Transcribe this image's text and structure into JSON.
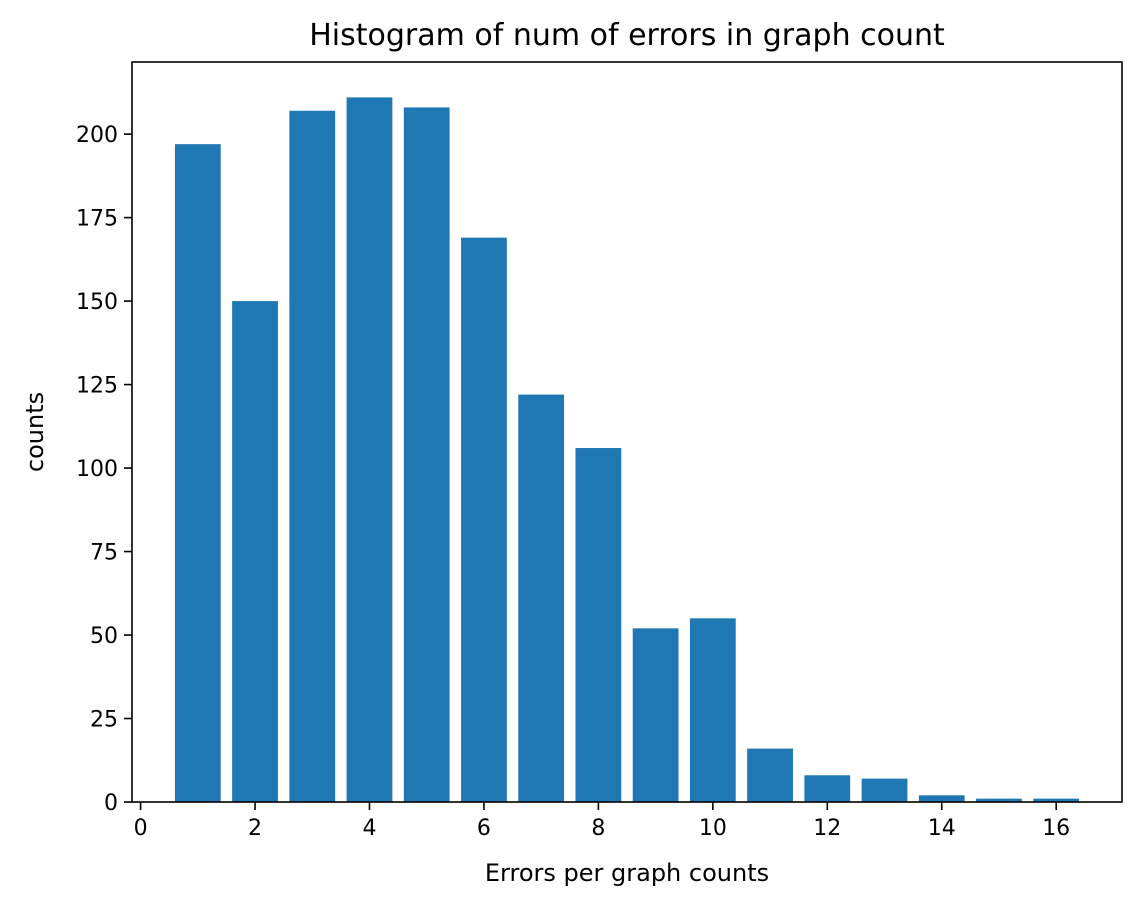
{
  "chart_data": {
    "type": "bar",
    "title": "Histogram of num of errors in graph count",
    "xlabel": "Errors per graph counts",
    "ylabel": "counts",
    "x": [
      1,
      2,
      3,
      4,
      5,
      6,
      7,
      8,
      9,
      10,
      11,
      12,
      13,
      14,
      15,
      16
    ],
    "values": [
      197,
      150,
      207,
      211,
      208,
      169,
      122,
      106,
      52,
      55,
      16,
      8,
      7,
      2,
      1,
      1
    ],
    "bar_width": 0.8,
    "xlim": [
      -0.15,
      17.15
    ],
    "ylim": [
      0,
      221.6
    ],
    "xticks": [
      0,
      2,
      4,
      6,
      8,
      10,
      12,
      14,
      16
    ],
    "yticks": [
      0,
      25,
      50,
      75,
      100,
      125,
      150,
      175,
      200
    ],
    "bar_color": "#1f77b4",
    "grid": false,
    "legend": "none"
  }
}
